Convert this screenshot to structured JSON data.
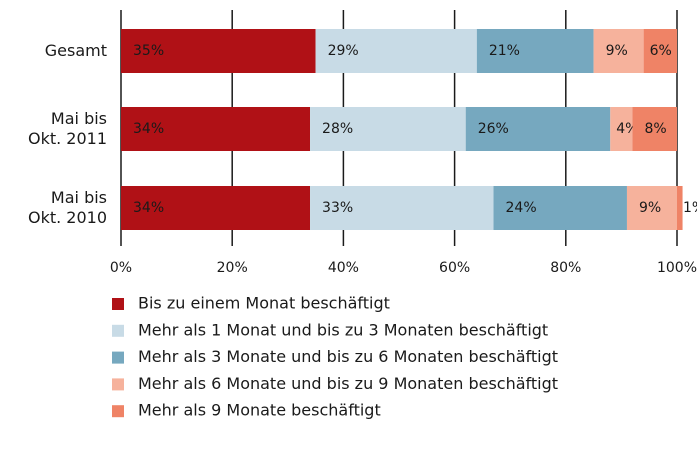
{
  "chart_data": {
    "type": "stacked-barh",
    "categories": [
      [
        "Gesamt"
      ],
      [
        "Mai bis",
        "Okt. 2011"
      ],
      [
        "Mai bis",
        "Okt. 2010"
      ]
    ],
    "series": [
      {
        "name": "Bis zu einem Monat beschäftigt",
        "color": "#b01116",
        "values": [
          35,
          34,
          34
        ],
        "value_labels": [
          "35%",
          "34%",
          "34%"
        ]
      },
      {
        "name": "Mehr als 1 Monat und bis zu 3 Monaten beschäftigt",
        "color": "#c8dbe6",
        "values": [
          29,
          28,
          33
        ],
        "value_labels": [
          "29%",
          "28%",
          "33%"
        ]
      },
      {
        "name": "Mehr als 3 Monate und bis zu 6 Monaten beschäftigt",
        "color": "#76a8bf",
        "values": [
          21,
          26,
          24
        ],
        "value_labels": [
          "21%",
          "26%",
          "24%"
        ]
      },
      {
        "name": "Mehr als 6 Monate und bis zu 9 Monaten beschäftigt",
        "color": "#f6b29c",
        "values": [
          9,
          4,
          9
        ],
        "value_labels": [
          "9%",
          "4%",
          "9%"
        ]
      },
      {
        "name": "Mehr als 9 Monate beschäftigt",
        "color": "#ef8366",
        "values": [
          6,
          8,
          1
        ],
        "value_labels": [
          "6%",
          "8%",
          "1%"
        ]
      }
    ],
    "xlim": [
      0,
      100
    ],
    "xticks": [
      {
        "value": 0,
        "label": "0%"
      },
      {
        "value": 20,
        "label": "20%"
      },
      {
        "value": 40,
        "label": "40%"
      },
      {
        "value": 60,
        "label": "60%"
      },
      {
        "value": 80,
        "label": "80%"
      },
      {
        "value": 100,
        "label": "100%"
      }
    ],
    "grid": true
  }
}
